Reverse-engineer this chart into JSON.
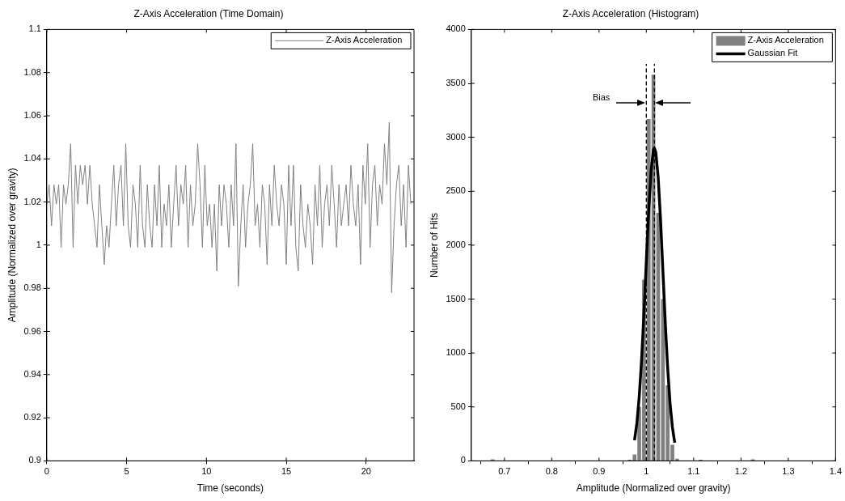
{
  "chart_data": [
    {
      "type": "line",
      "title": "Z-Axis Acceleration (Time Domain)",
      "xlabel": "Time (seconds)",
      "ylabel": "Amplitude (Normalized over gravity)",
      "x": [
        0,
        0.15,
        0.3,
        0.45,
        0.6,
        0.75,
        0.9,
        1.05,
        1.2,
        1.35,
        1.5,
        1.65,
        1.8,
        1.95,
        2.1,
        2.25,
        2.4,
        2.55,
        2.7,
        2.85,
        3,
        3.15,
        3.3,
        3.45,
        3.6,
        3.75,
        3.9,
        4.05,
        4.2,
        4.35,
        4.5,
        4.65,
        4.8,
        4.95,
        5.1,
        5.25,
        5.4,
        5.55,
        5.7,
        5.85,
        6,
        6.15,
        6.3,
        6.45,
        6.6,
        6.75,
        6.9,
        7.05,
        7.2,
        7.35,
        7.5,
        7.65,
        7.8,
        7.95,
        8.1,
        8.25,
        8.4,
        8.55,
        8.7,
        8.85,
        9,
        9.15,
        9.3,
        9.45,
        9.6,
        9.75,
        9.9,
        10.05,
        10.2,
        10.35,
        10.5,
        10.65,
        10.8,
        10.95,
        11.1,
        11.25,
        11.4,
        11.55,
        11.7,
        11.85,
        12,
        12.15,
        12.3,
        12.45,
        12.6,
        12.75,
        12.9,
        13.05,
        13.2,
        13.35,
        13.5,
        13.65,
        13.8,
        13.95,
        14.1,
        14.25,
        14.4,
        14.55,
        14.7,
        14.85,
        15,
        15.15,
        15.3,
        15.45,
        15.6,
        15.75,
        15.9,
        16.05,
        16.2,
        16.35,
        16.5,
        16.65,
        16.8,
        16.95,
        17.1,
        17.25,
        17.4,
        17.55,
        17.7,
        17.85,
        18,
        18.15,
        18.3,
        18.45,
        18.6,
        18.75,
        18.9,
        19.05,
        19.2,
        19.35,
        19.5,
        19.65,
        19.8,
        19.95,
        20.1,
        20.25,
        20.4,
        20.55,
        20.7,
        20.85,
        21,
        21.15,
        21.3,
        21.45,
        21.6,
        21.75,
        21.9,
        22.05,
        22.2,
        22.35,
        22.5,
        22.65,
        22.8
      ],
      "series": [
        {
          "name": "Z-Axis Acceleration",
          "color": "#808080",
          "values": [
            1.019,
            1.028,
            1.009,
            1.028,
            1.019,
            1.028,
            0.999,
            1.028,
            1.019,
            1.028,
            1.047,
            0.999,
            1.037,
            1.019,
            1.037,
            1.028,
            1.037,
            1.019,
            1.037,
            1.019,
            1.009,
            0.999,
            1.028,
            1.009,
            0.991,
            1.009,
            0.999,
            1.019,
            1.037,
            1.009,
            1.028,
            1.037,
            1.009,
            1.047,
            1.009,
            0.999,
            1.028,
            1.019,
            0.999,
            1.037,
            1.009,
            0.999,
            1.028,
            1.009,
            0.999,
            1.028,
            1.009,
            1.037,
            0.999,
            1.019,
            1.009,
            1.028,
            0.999,
            1.019,
            1.037,
            1.009,
            1.028,
            1.019,
            1.037,
            0.999,
            1.028,
            1.009,
            1.019,
            1.047,
            1.028,
            0.999,
            1.037,
            1.009,
            1.019,
            0.999,
            1.019,
            0.988,
            1.028,
            1.009,
            1.028,
            1.019,
            0.999,
            1.028,
            1.009,
            1.047,
            0.981,
            1.009,
            1.028,
            0.999,
            1.019,
            1.028,
            1.047,
            1.009,
            1.019,
            0.999,
            1.028,
            1.019,
            0.991,
            1.028,
            1.009,
            1.037,
            1.019,
            1.009,
            1.028,
            1.019,
            0.991,
            1.037,
            1.009,
            1.037,
            0.999,
            0.988,
            1.028,
            1.009,
            0.999,
            1.019,
            1.009,
            0.991,
            1.028,
            1.009,
            1.037,
            0.999,
            1.019,
            1.028,
            1.009,
            1.037,
            1.019,
            0.999,
            1.028,
            1.009,
            1.019,
            1.028,
            1.009,
            1.037,
            1.019,
            1.009,
            1.028,
            0.991,
            1.037,
            1.019,
            1.047,
            0.999,
            1.028,
            1.037,
            1.009,
            1.028,
            1.019,
            1.047,
            1.028,
            1.057,
            0.978,
            1.009,
            1.028,
            1.037,
            1.009,
            1.028,
            0.999,
            1.037,
            1.019
          ]
        }
      ],
      "xlim": [
        0,
        23
      ],
      "xticks": [
        0,
        5,
        10,
        15,
        20
      ],
      "ylim": [
        0.9,
        1.1
      ],
      "yticks": [
        0.9,
        0.92,
        0.94,
        0.96,
        0.98,
        1,
        1.02,
        1.04,
        1.06,
        1.08,
        1.1
      ],
      "legend": "top right"
    },
    {
      "type": "histogram",
      "title": "Z-Axis Acceleration (Histogram)",
      "xlabel": "Amplitude (Normalized over gravity)",
      "ylabel": "Number of Hits",
      "bins": [
        0.65,
        0.66,
        0.67,
        0.68,
        0.69,
        0.7,
        0.71,
        0.72,
        0.73,
        0.74,
        0.75,
        0.76,
        0.77,
        0.78,
        0.79,
        0.8,
        0.81,
        0.82,
        0.83,
        0.84,
        0.85,
        0.86,
        0.87,
        0.88,
        0.89,
        0.9,
        0.91,
        0.92,
        0.93,
        0.94,
        0.95,
        0.96,
        0.97,
        0.98,
        0.99,
        1,
        1.01,
        1.02,
        1.03,
        1.04,
        1.05,
        1.06,
        1.07,
        1.08,
        1.09,
        1.1,
        1.11,
        1.12,
        1.13,
        1.14,
        1.15,
        1.16,
        1.17,
        1.18,
        1.19,
        1.2,
        1.21,
        1.22,
        1.23,
        1.24,
        1.25
      ],
      "series": [
        {
          "name": "Z-Axis Acceleration",
          "color": "#808080",
          "values": [
            0,
            0,
            15,
            0,
            0,
            0,
            0,
            0,
            0,
            0,
            0,
            0,
            0,
            0,
            0,
            0,
            0,
            0,
            0,
            0,
            0,
            0,
            0,
            0,
            0,
            0,
            0,
            0,
            0,
            0,
            0,
            10,
            60,
            500,
            1680,
            3170,
            3580,
            2300,
            1500,
            700,
            150,
            20,
            0,
            0,
            0,
            0,
            10,
            0,
            0,
            0,
            0,
            0,
            0,
            0,
            0,
            0,
            0,
            15,
            0,
            0
          ]
        },
        {
          "name": "Gaussian Fit",
          "type": "line",
          "color": "#000000",
          "x": [
            0.975,
            0.98,
            0.985,
            0.99,
            0.995,
            1,
            1.005,
            1.01,
            1.015,
            1.017,
            1.02,
            1.025,
            1.03,
            1.035,
            1.04,
            1.045,
            1.05,
            1.055,
            1.06
          ],
          "values": [
            191,
            351,
            597,
            942,
            1374,
            1857,
            2322,
            2689,
            2882,
            2900,
            2860,
            2627,
            2234,
            1759,
            1282,
            864,
            540,
            313,
            168
          ]
        }
      ],
      "xlim": [
        0.63,
        1.4
      ],
      "xticks": [
        0.7,
        0.8,
        0.9,
        1,
        1.1,
        1.2,
        1.3,
        1.4
      ],
      "ylim": [
        0,
        4000
      ],
      "yticks": [
        0,
        500,
        1000,
        1500,
        2000,
        2500,
        3000,
        3500,
        4000
      ],
      "legend": "top right",
      "ref_lines": [
        {
          "axis": "x",
          "value": 1,
          "color": "#000000",
          "line_style": "dashed"
        },
        {
          "axis": "x",
          "value": 1.017,
          "color": "#000000",
          "line_style": "dashed"
        }
      ],
      "annotations": [
        "Bias"
      ]
    }
  ]
}
